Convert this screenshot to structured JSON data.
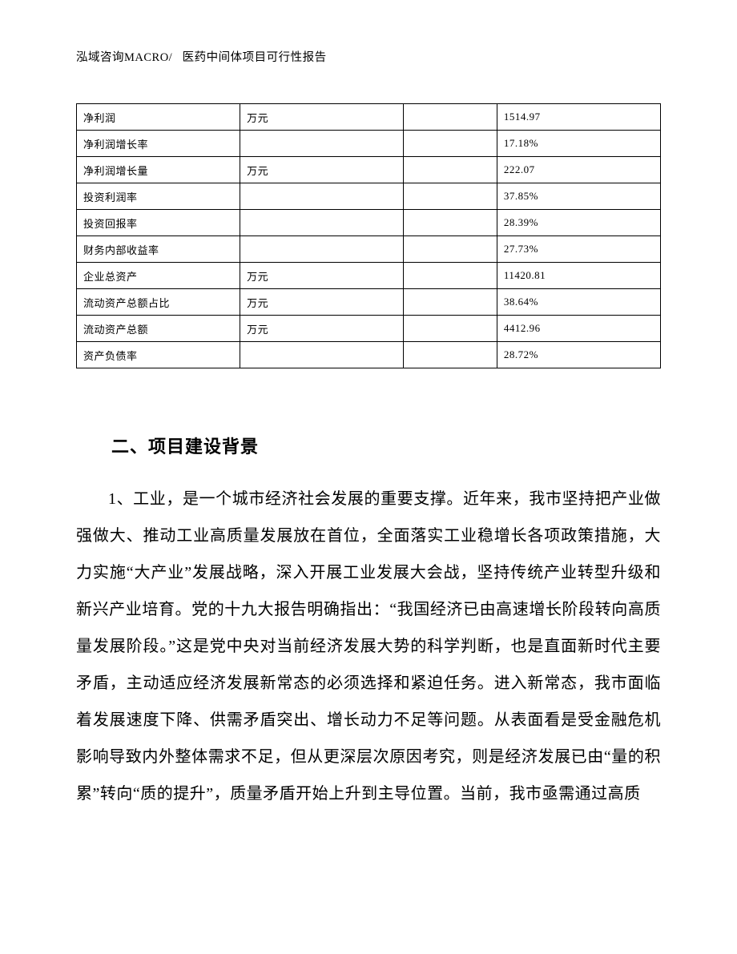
{
  "header": {
    "company": "泓域咨询MACRO/",
    "doc_title": "医药中间体项目可行性报告"
  },
  "table": {
    "columns": [
      "name",
      "unit",
      "blank",
      "value"
    ],
    "rows": [
      {
        "name": "净利润",
        "unit": "万元",
        "blank": "",
        "value": "1514.97"
      },
      {
        "name": "净利润增长率",
        "unit": "",
        "blank": "",
        "value": "17.18%"
      },
      {
        "name": "净利润增长量",
        "unit": "万元",
        "blank": "",
        "value": "222.07"
      },
      {
        "name": "投资利润率",
        "unit": "",
        "blank": "",
        "value": "37.85%"
      },
      {
        "name": "投资回报率",
        "unit": "",
        "blank": "",
        "value": "28.39%"
      },
      {
        "name": "财务内部收益率",
        "unit": "",
        "blank": "",
        "value": "27.73%"
      },
      {
        "name": "企业总资产",
        "unit": "万元",
        "blank": "",
        "value": "11420.81"
      },
      {
        "name": "流动资产总额占比",
        "unit": "万元",
        "blank": "",
        "value": "38.64%"
      },
      {
        "name": "流动资产总额",
        "unit": "万元",
        "blank": "",
        "value": "4412.96"
      },
      {
        "name": "资产负债率",
        "unit": "",
        "blank": "",
        "value": "28.72%"
      }
    ]
  },
  "section": {
    "heading": "二、项目建设背景",
    "paragraph": "1、工业，是一个城市经济社会发展的重要支撑。近年来，我市坚持把产业做强做大、推动工业高质量发展放在首位，全面落实工业稳增长各项政策措施，大力实施“大产业”发展战略，深入开展工业发展大会战，坚持传统产业转型升级和新兴产业培育。党的十九大报告明确指出：“我国经济已由高速增长阶段转向高质量发展阶段。”这是党中央对当前经济发展大势的科学判断，也是直面新时代主要矛盾，主动适应经济发展新常态的必须选择和紧迫任务。进入新常态，我市面临着发展速度下降、供需矛盾突出、增长动力不足等问题。从表面看是受金融危机影响导致内外整体需求不足，但从更深层次原因考究，则是经济发展已由“量的积累”转向“质的提升”，质量矛盾开始上升到主导位置。当前，我市亟需通过高质"
  }
}
